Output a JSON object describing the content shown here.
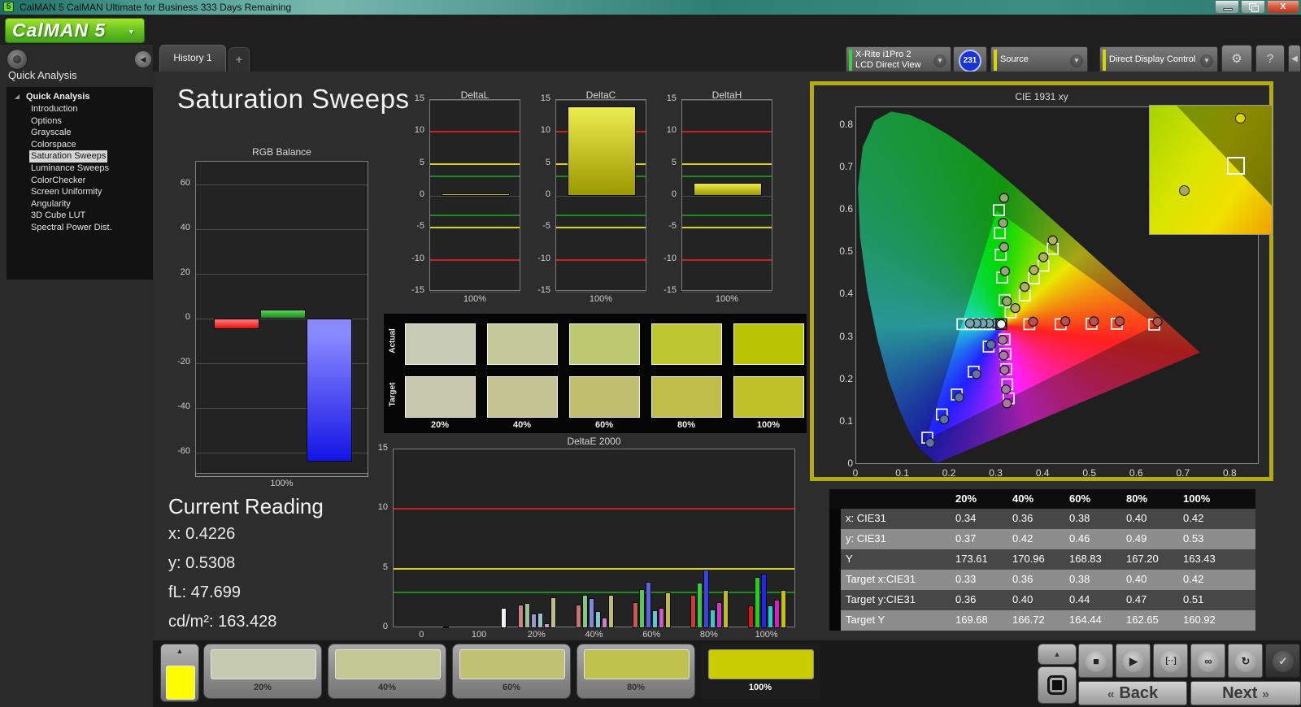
{
  "window": {
    "title": "CalMAN 5 CalMAN Ultimate for Business 333 Days Remaining",
    "icon_text": "5",
    "close_label": "X"
  },
  "logo": {
    "text": "CalMAN 5",
    "arrow": "▼"
  },
  "tabs": {
    "history": "History 1",
    "add": "+"
  },
  "toolbar": {
    "meter": {
      "line1": "X-Rite i1Pro 2",
      "line2": "LCD Direct View",
      "accent": "#3fd03f",
      "badge": "231"
    },
    "source": {
      "label": "Source",
      "accent": "#d6d600"
    },
    "ddc": {
      "label": "Direct Display Control",
      "accent": "#d6d600"
    },
    "gear_icon": "⚙",
    "help_icon": "?",
    "collapse_icon": "◀",
    "dropdown_arrow": "▼"
  },
  "sidebar": {
    "header": "Quick Analysis",
    "tree_root": "Quick Analysis",
    "items": [
      {
        "label": "Introduction",
        "selected": false
      },
      {
        "label": "Options",
        "selected": false
      },
      {
        "label": "Grayscale",
        "selected": false
      },
      {
        "label": "Colorspace",
        "selected": false
      },
      {
        "label": "Saturation Sweeps",
        "selected": true
      },
      {
        "label": "Luminance Sweeps",
        "selected": false
      },
      {
        "label": "ColorChecker",
        "selected": false
      },
      {
        "label": "Screen Uniformity",
        "selected": false
      },
      {
        "label": "Angularity",
        "selected": false
      },
      {
        "label": "3D Cube LUT",
        "selected": false
      },
      {
        "label": "Spectral Power Dist.",
        "selected": false
      }
    ],
    "collapse_icon": "◀"
  },
  "page_title": "Saturation Sweeps",
  "current_reading": {
    "title": "Current Reading",
    "lines": [
      "x: 0.4226",
      "y: 0.5308",
      "fL: 47.699",
      "cd/m²: 163.428"
    ]
  },
  "chart_data": [
    {
      "type": "bar",
      "title": "RGB Balance",
      "xlabel": "100%",
      "categories": [
        "Red",
        "Green",
        "Blue"
      ],
      "values": [
        -5,
        4,
        -64
      ],
      "colors": [
        "#e01010",
        "#1e8c1e",
        "#1414e6"
      ],
      "ylim": [
        -70,
        70
      ],
      "yticks": [
        60,
        40,
        20,
        0,
        -20,
        -40,
        -60
      ]
    },
    {
      "type": "bar",
      "title": "DeltaL",
      "xlabel": "100%",
      "values": [
        0.4
      ],
      "ylim": [
        -15,
        15
      ],
      "yticks": [
        15,
        10,
        5,
        0,
        -5,
        -10,
        -15
      ],
      "limit_lines": [
        {
          "y": 10,
          "color": "#cc2222"
        },
        {
          "y": 5,
          "color": "#d8d800"
        },
        {
          "y": 3,
          "color": "#1e8c1e"
        },
        {
          "y": -3,
          "color": "#1e8c1e"
        },
        {
          "y": -5,
          "color": "#d8d800"
        },
        {
          "y": -10,
          "color": "#cc2222"
        }
      ]
    },
    {
      "type": "bar",
      "title": "DeltaC",
      "xlabel": "100%",
      "values": [
        14
      ],
      "ylim": [
        -15,
        15
      ],
      "yticks": [
        15,
        10,
        5,
        0,
        -5,
        -10,
        -15
      ],
      "limit_lines": [
        {
          "y": 10,
          "color": "#cc2222"
        },
        {
          "y": 5,
          "color": "#d8d800"
        },
        {
          "y": 3,
          "color": "#1e8c1e"
        },
        {
          "y": -3,
          "color": "#1e8c1e"
        },
        {
          "y": -5,
          "color": "#d8d800"
        },
        {
          "y": -10,
          "color": "#cc2222"
        }
      ]
    },
    {
      "type": "bar",
      "title": "DeltaH",
      "xlabel": "100%",
      "values": [
        2
      ],
      "ylim": [
        -15,
        15
      ],
      "yticks": [
        15,
        10,
        5,
        0,
        -5,
        -10,
        -15
      ],
      "limit_lines": [
        {
          "y": 10,
          "color": "#cc2222"
        },
        {
          "y": 5,
          "color": "#d8d800"
        },
        {
          "y": 3,
          "color": "#1e8c1e"
        },
        {
          "y": -3,
          "color": "#1e8c1e"
        },
        {
          "y": -5,
          "color": "#d8d800"
        },
        {
          "y": -10,
          "color": "#cc2222"
        }
      ]
    },
    {
      "type": "bar",
      "title": "DeltaE 2000",
      "ylim": [
        0,
        15
      ],
      "yticks": [
        0,
        5,
        10,
        15
      ],
      "limit_lines": [
        {
          "y": 10,
          "color": "#cc2222"
        },
        {
          "y": 5,
          "color": "#d8d800"
        },
        {
          "y": 3,
          "color": "#1e8c1e"
        }
      ],
      "x_labels": [
        "0",
        "100",
        "20%",
        "40%",
        "60%",
        "80%",
        "100%"
      ],
      "groups": [
        {
          "label": "0",
          "values": [
            0.15
          ],
          "colors": [
            "#3a3a3a"
          ]
        },
        {
          "label": "100",
          "values": [
            1.7
          ],
          "colors": [
            "#f2f2f2"
          ]
        },
        {
          "label": "20%",
          "values": [
            2.0,
            2.1,
            1.2,
            1.3,
            0.4,
            2.6
          ],
          "colors": [
            "#c98585",
            "#9dbd93",
            "#9b95cd",
            "#94c4ca",
            "#cc96c7",
            "#bbbc8b"
          ]
        },
        {
          "label": "40%",
          "values": [
            2.0,
            2.8,
            2.5,
            1.4,
            0.9,
            2.8
          ],
          "colors": [
            "#c97272",
            "#80c980",
            "#8189dd",
            "#7ccacd",
            "#cd7dca",
            "#bcbc6b"
          ]
        },
        {
          "label": "60%",
          "values": [
            2.2,
            3.3,
            3.9,
            1.5,
            1.7,
            3.0
          ],
          "colors": [
            "#ca5757",
            "#57c957",
            "#5763e3",
            "#57cacd",
            "#cd58ca",
            "#bcbc48"
          ]
        },
        {
          "label": "80%",
          "values": [
            2.8,
            3.8,
            4.9,
            1.6,
            2.2,
            3.2
          ],
          "colors": [
            "#cd3939",
            "#39cd39",
            "#3944e9",
            "#39cacd",
            "#cd3aca",
            "#bcbc2a"
          ]
        },
        {
          "label": "100%",
          "values": [
            1.9,
            4.3,
            4.6,
            1.9,
            2.4,
            3.2
          ],
          "colors": [
            "#d41d1d",
            "#1dd41d",
            "#2424f2",
            "#1dd1d4",
            "#d41dd1",
            "#c4c400"
          ]
        }
      ]
    },
    {
      "type": "scatter",
      "title": "CIE 1931 xy",
      "xlim": [
        0,
        0.862
      ],
      "ylim": [
        0,
        0.844
      ],
      "xticks": [
        "0",
        "0.1",
        "0.2",
        "0.3",
        "0.4",
        "0.5",
        "0.6",
        "0.7",
        "0.8"
      ],
      "yticks": [
        "0",
        "0.1",
        "0.2",
        "0.3",
        "0.4",
        "0.5",
        "0.6",
        "0.7",
        "0.8"
      ],
      "white_point": {
        "x": 0.31,
        "y": 0.332
      },
      "triangle": [
        [
          0.64,
          0.33
        ],
        [
          0.3,
          0.6
        ],
        [
          0.15,
          0.06
        ]
      ],
      "series": [
        {
          "name": "red",
          "targets": [
            [
              0.37,
              0.332
            ],
            [
              0.437,
              0.332
            ],
            [
              0.503,
              0.333
            ],
            [
              0.557,
              0.333
            ],
            [
              0.637,
              0.331
            ]
          ],
          "measured": [
            [
              0.378,
              0.338
            ],
            [
              0.447,
              0.339
            ],
            [
              0.508,
              0.339
            ],
            [
              0.563,
              0.339
            ],
            [
              0.644,
              0.338
            ]
          ],
          "dot": "#b85050"
        },
        {
          "name": "green",
          "targets": [
            [
              0.305,
              0.601
            ],
            [
              0.307,
              0.547
            ],
            [
              0.309,
              0.496
            ],
            [
              0.312,
              0.442
            ],
            [
              0.317,
              0.389
            ]
          ],
          "measured": [
            [
              0.316,
              0.63
            ],
            [
              0.314,
              0.571
            ],
            [
              0.316,
              0.514
            ],
            [
              0.318,
              0.457
            ],
            [
              0.322,
              0.386
            ]
          ],
          "dot": "#90aa70"
        },
        {
          "name": "blue",
          "targets": [
            [
              0.283,
              0.279
            ],
            [
              0.251,
              0.22
            ],
            [
              0.215,
              0.166
            ],
            [
              0.183,
              0.119
            ],
            [
              0.152,
              0.064
            ]
          ],
          "measured": [
            [
              0.288,
              0.284
            ],
            [
              0.257,
              0.214
            ],
            [
              0.22,
              0.159
            ],
            [
              0.188,
              0.107
            ],
            [
              0.158,
              0.052
            ]
          ],
          "dot": "#6070a8"
        },
        {
          "name": "cyan",
          "targets": [
            [
              0.294,
              0.332
            ],
            [
              0.278,
              0.332
            ],
            [
              0.262,
              0.332
            ],
            [
              0.245,
              0.332
            ],
            [
              0.227,
              0.332
            ]
          ],
          "measured": [
            [
              0.297,
              0.334
            ],
            [
              0.284,
              0.334
            ],
            [
              0.27,
              0.334
            ],
            [
              0.257,
              0.334
            ],
            [
              0.243,
              0.334
            ]
          ],
          "dot": "#70a8b0"
        },
        {
          "name": "magenta",
          "targets": [
            [
              0.317,
              0.296
            ],
            [
              0.319,
              0.262
            ],
            [
              0.321,
              0.226
            ],
            [
              0.323,
              0.19
            ],
            [
              0.326,
              0.157
            ]
          ],
          "measured": [
            [
              0.313,
              0.295
            ],
            [
              0.315,
              0.258
            ],
            [
              0.317,
              0.224
            ],
            [
              0.32,
              0.178
            ],
            [
              0.322,
              0.145
            ]
          ],
          "dot": "#a878a0"
        },
        {
          "name": "yellow",
          "targets": [
            [
              0.33,
              0.36
            ],
            [
              0.36,
              0.4
            ],
            [
              0.38,
              0.44
            ],
            [
              0.4,
              0.47
            ],
            [
              0.42,
              0.51
            ]
          ],
          "measured": [
            [
              0.34,
              0.37
            ],
            [
              0.36,
              0.42
            ],
            [
              0.38,
              0.46
            ],
            [
              0.4,
              0.49
            ],
            [
              0.42,
              0.53
            ]
          ],
          "dot": "#b0b060"
        }
      ],
      "inset": {
        "target": {
          "left": "63%",
          "top": "40%"
        },
        "measured": [
          {
            "left": "70%",
            "top": "6%",
            "color": "#d8d800"
          },
          {
            "left": "24%",
            "top": "62%",
            "color": "#a8a858"
          }
        ]
      }
    },
    {
      "type": "table",
      "headers": [
        "",
        "20%",
        "40%",
        "60%",
        "80%",
        "100%"
      ],
      "rows": [
        {
          "label": "x: CIE31",
          "values": [
            "0.34",
            "0.36",
            "0.38",
            "0.40",
            "0.42"
          ]
        },
        {
          "label": "y: CIE31",
          "values": [
            "0.37",
            "0.42",
            "0.46",
            "0.49",
            "0.53"
          ]
        },
        {
          "label": "Y",
          "values": [
            "173.61",
            "170.96",
            "168.83",
            "167.20",
            "163.43"
          ]
        },
        {
          "label": "Target x:CIE31",
          "values": [
            "0.33",
            "0.36",
            "0.38",
            "0.40",
            "0.42"
          ]
        },
        {
          "label": "Target y:CIE31",
          "values": [
            "0.36",
            "0.40",
            "0.44",
            "0.47",
            "0.51"
          ]
        },
        {
          "label": "Target Y",
          "values": [
            "169.68",
            "166.72",
            "164.44",
            "162.65",
            "160.92"
          ]
        }
      ]
    }
  ],
  "swatch_panel": {
    "row_labels": [
      "Actual",
      "Target"
    ],
    "col_labels": [
      "20%",
      "40%",
      "60%",
      "80%",
      "100%"
    ],
    "actual_colors": [
      "#c7cbb4",
      "#c3c999",
      "#bec870",
      "#bdc730",
      "#b9c303"
    ],
    "target_colors": [
      "#c7c8ae",
      "#c4c394",
      "#c0bf70",
      "#bfbe4a",
      "#c0c128"
    ]
  },
  "bottom": {
    "mini_swatch_color": "#fdfd00",
    "mini_arrow": "▲",
    "patches": [
      {
        "label": "20%",
        "color": "#c6cab1",
        "selected": false
      },
      {
        "label": "40%",
        "color": "#c3c794",
        "selected": false
      },
      {
        "label": "60%",
        "color": "#c1c173",
        "selected": false
      },
      {
        "label": "80%",
        "color": "#bfc24d",
        "selected": false
      },
      {
        "label": "100%",
        "color": "#c8cc00",
        "selected": true
      }
    ],
    "transport_icons": [
      {
        "name": "stop-icon",
        "glyph": "■",
        "dark": false
      },
      {
        "name": "play-icon",
        "glyph": "▶",
        "dark": false
      },
      {
        "name": "read-series-icon",
        "glyph": "[··]",
        "dark": false
      },
      {
        "name": "continuous-icon",
        "glyph": "∞",
        "dark": false
      },
      {
        "name": "refresh-icon",
        "glyph": "↻",
        "dark": false
      },
      {
        "name": "accept-icon",
        "glyph": "✓",
        "dark": true
      }
    ],
    "back_label": "Back",
    "next_label": "Next",
    "back_chevron": "«",
    "next_chevron": "»"
  }
}
